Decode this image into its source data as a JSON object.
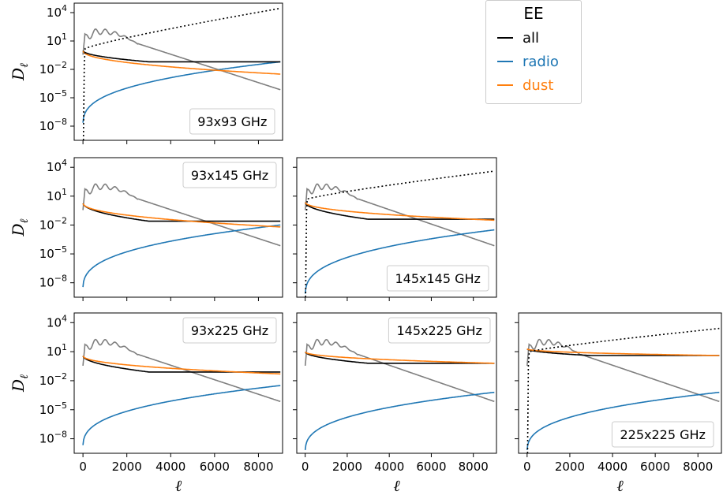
{
  "legend": {
    "title": "EE",
    "items": [
      {
        "label": "all",
        "color": "#000000"
      },
      {
        "label": "radio",
        "color": "#1f77b4"
      },
      {
        "label": "dust",
        "color": "#ff7f0e"
      }
    ]
  },
  "chart_data": {
    "type": "line",
    "grid": false,
    "xlabel": "ℓ",
    "ylabel": "D_ℓ",
    "xlim": [
      -400,
      9100
    ],
    "ylim_log10": [
      -9.5,
      5.0
    ],
    "yscale": "log",
    "xticks": [
      0,
      2000,
      4000,
      6000,
      8000
    ],
    "yticks": [
      "10^4",
      "10^1",
      "10^-2",
      "10^-5",
      "10^-8"
    ],
    "colors": {
      "all": "#000000",
      "radio": "#1f77b4",
      "dust": "#ff7f0e",
      "cmb": "#7f7f7f",
      "noise": "#000000"
    },
    "panels": [
      {
        "label": "93x93 GHz",
        "row": 0,
        "col": 0,
        "noise": {
          "dotted": true,
          "start_log10": -9.5,
          "lvalue_at_100": 0.2,
          "lvalue_at_9000": 4.45
        }
      },
      {
        "label": "93x145 GHz",
        "row": 1,
        "col": 0,
        "noise": null
      },
      {
        "label": "145x145 GHz",
        "row": 1,
        "col": 1,
        "noise": {
          "dotted": true,
          "start_log10": -9.5,
          "lvalue_at_100": 0.7,
          "lvalue_at_9000": 3.6
        }
      },
      {
        "label": "93x225 GHz",
        "row": 2,
        "col": 0,
        "noise": null
      },
      {
        "label": "145x225 GHz",
        "row": 2,
        "col": 1,
        "noise": null
      },
      {
        "label": "225x225 GHz",
        "row": 2,
        "col": 2,
        "noise": {
          "dotted": true,
          "start_log10": -9.5,
          "lvalue_at_100": 1.0,
          "lvalue_at_9000": 3.4
        }
      }
    ],
    "series_params": {
      "93x93 GHz": {
        "radio_start": -8.0,
        "radio_end": -1.2,
        "dust_start": 0.0,
        "dust_end": -2.5,
        "all_end": -1.2
      },
      "93x145 GHz": {
        "radio_start": -8.8,
        "radio_end": -2.0,
        "dust_start": 0.3,
        "dust_end": -2.2,
        "all_end": -1.6
      },
      "145x145 GHz": {
        "radio_start": -9.5,
        "radio_end": -2.5,
        "dust_start": 0.4,
        "dust_end": -1.5,
        "all_end": -1.4
      },
      "93x225 GHz": {
        "radio_start": -9.0,
        "radio_end": -2.5,
        "dust_start": 0.6,
        "dust_end": -1.3,
        "all_end": -1.1
      },
      "145x225 GHz": {
        "radio_start": -9.5,
        "radio_end": -3.2,
        "dust_start": 1.0,
        "dust_end": -0.2,
        "all_end": -0.2
      },
      "225x225 GHz": {
        "radio_start": -9.5,
        "radio_end": -3.2,
        "dust_start": 1.3,
        "dust_end": 0.6,
        "all_end": 0.6
      }
    }
  }
}
